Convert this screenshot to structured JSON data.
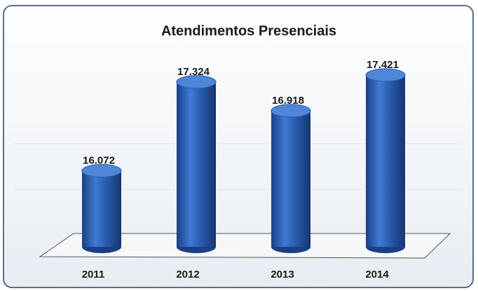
{
  "chart_data": {
    "type": "bar",
    "title": "Atendimentos Presenciais",
    "categories": [
      "2011",
      "2012",
      "2013",
      "2014"
    ],
    "values": [
      16072,
      17324,
      16918,
      17421
    ],
    "value_labels": [
      "16.072",
      "17.324",
      "16.918",
      "17.421"
    ],
    "color": "#2a5db0",
    "ylim": [
      15000,
      17500
    ]
  }
}
